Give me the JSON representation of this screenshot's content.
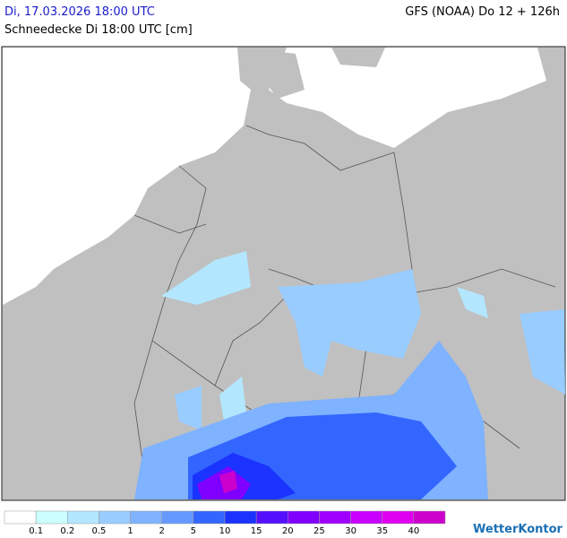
{
  "header": {
    "date": "Di, 17.03.2026 18:00 UTC",
    "model": "GFS (NOAA) Do 12 + 126h",
    "title": "Schneedecke Di 18:00 UTC [cm]"
  },
  "legend": {
    "labels": [
      "0.1",
      "0.2",
      "0.5",
      "1",
      "2",
      "5",
      "10",
      "15",
      "20",
      "25",
      "30",
      "35",
      "40"
    ],
    "colors": [
      "#ffffff",
      "#ccffff",
      "#b3e6ff",
      "#99ccff",
      "#7fb2ff",
      "#6699ff",
      "#3366ff",
      "#1a33ff",
      "#5511ff",
      "#7f00ff",
      "#a000ff",
      "#c800ff",
      "#e000f0",
      "#cc00cc"
    ]
  },
  "logo": "WetterKontor"
}
